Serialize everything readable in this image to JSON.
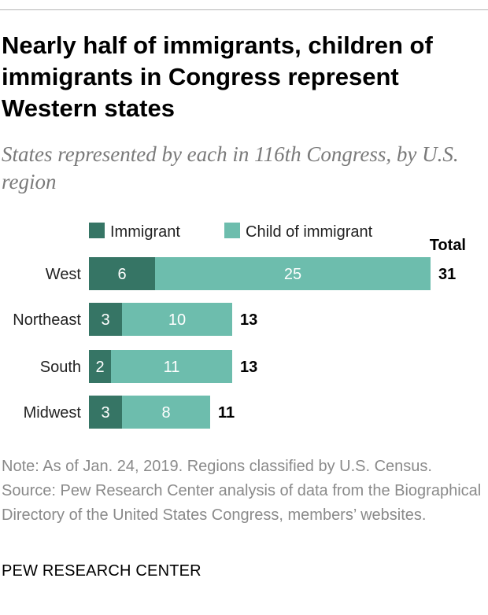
{
  "title": "Nearly half of immigrants, children of immigrants in Congress represent Western states",
  "subtitle": "States represented by each in 116th Congress, by U.S. region",
  "note": "Note: As of Jan. 24, 2019. Regions classified by U.S. Census.",
  "source": "Source: Pew Research Center analysis of data from the Biographical Directory of the United States Congress, members’ websites.",
  "organization": "PEW RESEARCH CENTER",
  "colors": {
    "immigrant": "#367565",
    "child": "#6dbdad"
  },
  "chart_data": {
    "type": "bar",
    "orientation": "horizontal",
    "stacked": true,
    "categories": [
      "West",
      "Northeast",
      "South",
      "Midwest"
    ],
    "series": [
      {
        "name": "Immigrant",
        "values": [
          6,
          3,
          2,
          3
        ]
      },
      {
        "name": "Child of immigrant",
        "values": [
          25,
          10,
          11,
          8
        ]
      }
    ],
    "totals_label": "Total",
    "totals": [
      31,
      13,
      13,
      11
    ],
    "legend": "top"
  }
}
